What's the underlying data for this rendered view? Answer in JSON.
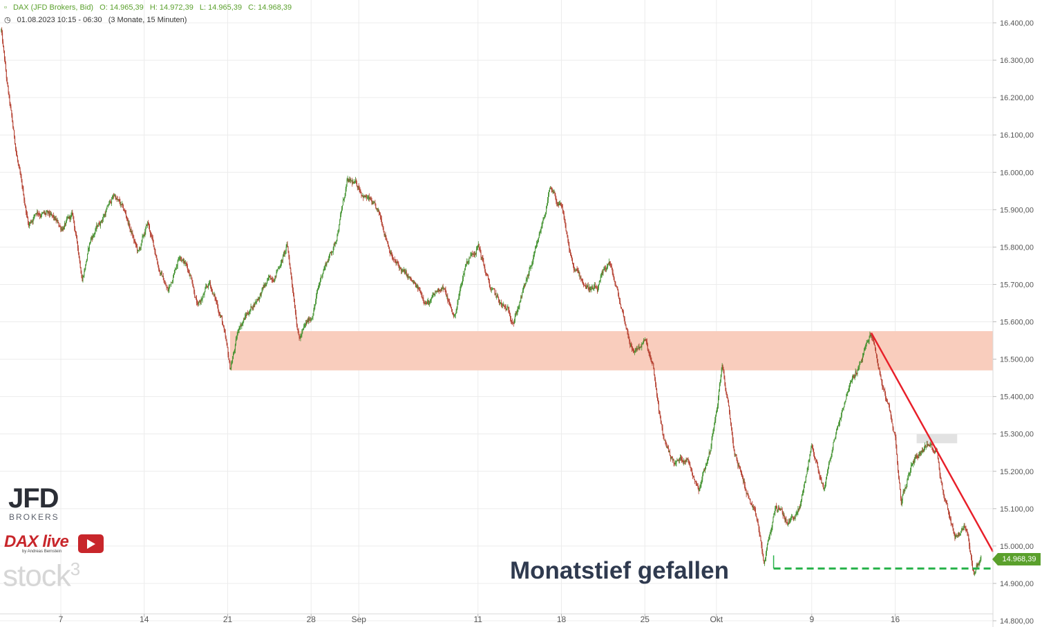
{
  "header": {
    "symbol": "DAX (JFD Brokers, Bid)",
    "open": "O: 14.965,39",
    "high": "H: 14.972,39",
    "low": "L: 14.965,39",
    "close": "C: 14.968,39",
    "range": "01.08.2023 10:15 - 06:30",
    "period": "(3 Monate, 15 Minuten)"
  },
  "annotation": "Monatstief gefallen",
  "last_price_label": "14.968,39",
  "logos": {
    "jfd": "JFD",
    "jfd_sub": "BROKERS",
    "dax_live": "DAX live",
    "dax_live_sub": "by Andreas Bernstein",
    "stock3": "stock",
    "stock3_sup": "3"
  },
  "colors": {
    "up": "#3d8f2a",
    "down": "#b23a2a",
    "zone": "#f9cdbd",
    "trendline": "#e8202a",
    "support": "#27b24a",
    "accent": "#5aa02c"
  },
  "chart_data": {
    "type": "candlestick",
    "interval": "15 Minuten",
    "ylim": [
      14800,
      16400
    ],
    "y_ticks": [
      "16.400,00",
      "16.300,00",
      "16.200,00",
      "16.100,00",
      "16.000,00",
      "15.900,00",
      "15.800,00",
      "15.700,00",
      "15.600,00",
      "15.500,00",
      "15.400,00",
      "15.300,00",
      "15.200,00",
      "15.100,00",
      "15.000,00",
      "14.900,00",
      "14.800,00"
    ],
    "y_tick_values": [
      16400,
      16300,
      16200,
      16100,
      16000,
      15900,
      15800,
      15700,
      15600,
      15500,
      15400,
      15300,
      15200,
      15100,
      15000,
      14900,
      14800
    ],
    "x_ticks": [
      "7",
      "14",
      "21",
      "28",
      "Sep",
      "11",
      "18",
      "25",
      "Okt",
      "9",
      "16"
    ],
    "x_tick_days": [
      6,
      13,
      20,
      27,
      31,
      41,
      48,
      55,
      61,
      69,
      76
    ],
    "x_range_days": [
      0.9,
      84.2
    ],
    "price_path": [
      [
        1,
        16380
      ],
      [
        1.5,
        16230
      ],
      [
        2,
        16110
      ],
      [
        2.7,
        15960
      ],
      [
        3.3,
        15860
      ],
      [
        4,
        15900
      ],
      [
        5,
        15880
      ],
      [
        6,
        15850
      ],
      [
        7,
        15880
      ],
      [
        7.8,
        15720
      ],
      [
        8.5,
        15820
      ],
      [
        9.5,
        15880
      ],
      [
        10.5,
        15940
      ],
      [
        11.5,
        15880
      ],
      [
        12.5,
        15780
      ],
      [
        13.3,
        15860
      ],
      [
        14.3,
        15740
      ],
      [
        15,
        15680
      ],
      [
        16,
        15790
      ],
      [
        17,
        15720
      ],
      [
        17.5,
        15640
      ],
      [
        18.5,
        15700
      ],
      [
        19.5,
        15610
      ],
      [
        20.2,
        15470
      ],
      [
        21,
        15590
      ],
      [
        22,
        15640
      ],
      [
        23,
        15690
      ],
      [
        24,
        15730
      ],
      [
        25,
        15800
      ],
      [
        26,
        15560
      ],
      [
        27,
        15610
      ],
      [
        28,
        15740
      ],
      [
        29,
        15810
      ],
      [
        30,
        15970
      ],
      [
        31,
        15960
      ],
      [
        32,
        15920
      ],
      [
        33,
        15860
      ],
      [
        34,
        15760
      ],
      [
        35,
        15720
      ],
      [
        36,
        15680
      ],
      [
        37,
        15650
      ],
      [
        38,
        15700
      ],
      [
        39,
        15610
      ],
      [
        40,
        15760
      ],
      [
        41,
        15810
      ],
      [
        42,
        15690
      ],
      [
        43,
        15640
      ],
      [
        44,
        15610
      ],
      [
        45,
        15700
      ],
      [
        46,
        15800
      ],
      [
        47,
        15950
      ],
      [
        48,
        15900
      ],
      [
        49,
        15740
      ],
      [
        50,
        15700
      ],
      [
        51,
        15680
      ],
      [
        52,
        15760
      ],
      [
        53,
        15640
      ],
      [
        54,
        15520
      ],
      [
        55,
        15550
      ],
      [
        55.7,
        15470
      ],
      [
        56.5,
        15290
      ],
      [
        57.5,
        15220
      ],
      [
        58.5,
        15240
      ],
      [
        59.5,
        15160
      ],
      [
        60.5,
        15260
      ],
      [
        61.5,
        15490
      ],
      [
        62.5,
        15250
      ],
      [
        63.5,
        15150
      ],
      [
        64.5,
        15050
      ],
      [
        65,
        14950
      ],
      [
        66,
        15110
      ],
      [
        67,
        15060
      ],
      [
        68,
        15100
      ],
      [
        69,
        15270
      ],
      [
        70,
        15150
      ],
      [
        71,
        15300
      ],
      [
        72,
        15420
      ],
      [
        73,
        15480
      ],
      [
        74,
        15570
      ],
      [
        75,
        15420
      ],
      [
        76,
        15290
      ],
      [
        76.5,
        15120
      ],
      [
        77.5,
        15230
      ],
      [
        78.5,
        15270
      ],
      [
        79.5,
        15260
      ],
      [
        80,
        15150
      ],
      [
        81,
        15030
      ],
      [
        82,
        15050
      ],
      [
        82.6,
        14930
      ],
      [
        83.2,
        14968
      ]
    ],
    "resistance_zone": [
      15470,
      15575
    ],
    "resistance_zone_days": [
      20.2,
      84.2
    ],
    "small_zone": [
      15275,
      15300
    ],
    "small_zone_days": [
      77.8,
      81.2
    ],
    "trendline": [
      [
        74.0,
        15570
      ],
      [
        84.2,
        14985
      ]
    ],
    "support_line": [
      [
        65.8,
        14940
      ],
      [
        84.0,
        14940
      ]
    ],
    "support_vertical_day": 65.8,
    "last_price": 14968.39
  }
}
